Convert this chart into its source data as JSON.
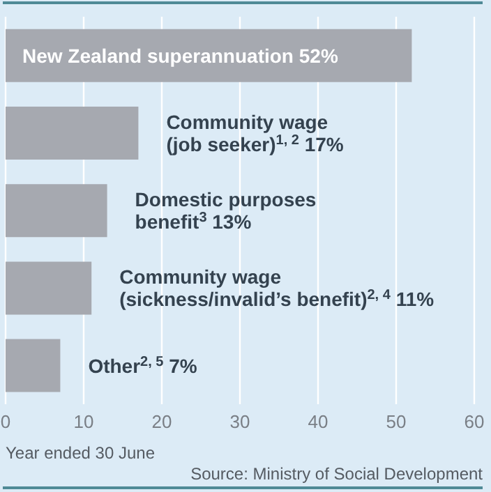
{
  "chart_data": {
    "type": "bar",
    "orientation": "horizontal",
    "categories": [
      "New Zealand superannuation  52%",
      "Community wage (job seeker)$^{1, 2}$  17%",
      "Domestic purposes benefit$^{3}$  13%",
      "Community wage (sickness/invalid’s benefit)$^{2, 4}$  11%",
      "Other$^{2, 5}$  7%"
    ],
    "values": [
      52,
      17,
      13,
      11,
      7
    ],
    "color": "#a6a9b0",
    "xlim": [
      0,
      60
    ],
    "xticks": [
      0,
      10,
      20,
      30,
      40,
      50,
      60
    ],
    "grid": "x",
    "annotations": [
      "Year ended 30 June",
      "Source: Ministry of Social Development"
    ]
  }
}
